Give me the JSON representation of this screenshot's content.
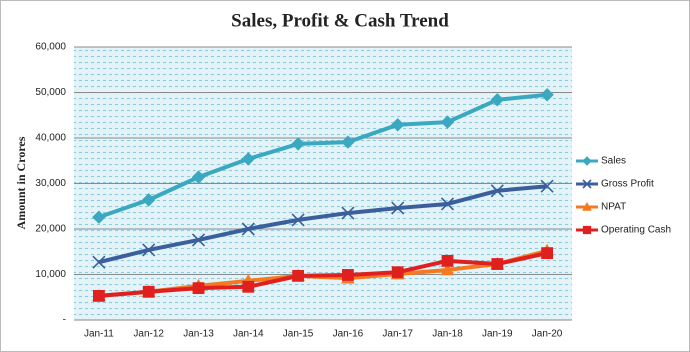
{
  "chart_data": {
    "type": "line",
    "title": "Sales, Profit & Cash Trend",
    "y_label": "Amount in Crores",
    "categories": [
      "Jan-11",
      "Jan-12",
      "Jan-13",
      "Jan-14",
      "Jan-15",
      "Jan-16",
      "Jan-17",
      "Jan-18",
      "Jan-19",
      "Jan-20"
    ],
    "series": [
      {
        "name": "Sales",
        "color": "#3aa8c1",
        "marker": "diamond",
        "values": [
          22600,
          26400,
          31400,
          35400,
          38700,
          39100,
          42900,
          43500,
          48400,
          49500
        ]
      },
      {
        "name": "Gross Profit",
        "color": "#3a5f9c",
        "marker": "x",
        "values": [
          12700,
          15400,
          17600,
          20000,
          22000,
          23500,
          24600,
          25500,
          28400,
          29400
        ]
      },
      {
        "name": "NPAT",
        "color": "#f47a20",
        "marker": "triangle",
        "values": [
          5300,
          6200,
          7500,
          8600,
          9700,
          9200,
          10100,
          11000,
          12300,
          15200
        ]
      },
      {
        "name": "Operating Cash",
        "color": "#e0201f",
        "marker": "square",
        "values": [
          5300,
          6200,
          7000,
          7300,
          9700,
          9900,
          10500,
          13000,
          12300,
          14700
        ]
      }
    ],
    "ylim": [
      0,
      60000
    ],
    "yticks": [
      {
        "value": 0,
        "label": "-"
      },
      {
        "value": 10000,
        "label": "10,000"
      },
      {
        "value": 20000,
        "label": "20,000"
      },
      {
        "value": 30000,
        "label": "30,000"
      },
      {
        "value": 40000,
        "label": "40,000"
      },
      {
        "value": 50000,
        "label": "50,000"
      },
      {
        "value": 60000,
        "label": "60,000"
      }
    ],
    "grid": true,
    "legend": "right"
  }
}
